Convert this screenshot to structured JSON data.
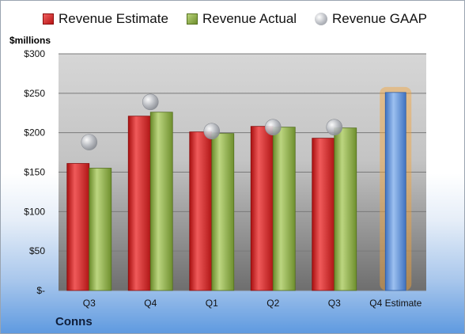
{
  "legend": {
    "estimate": "Revenue Estimate",
    "actual": "Revenue Actual",
    "gaap": "Revenue GAAP"
  },
  "y_unit": "$millions",
  "company": "Conns",
  "colors": {
    "estimate": "#d42a2a",
    "actual": "#8fb04a",
    "gaap": "#b9bcc2",
    "forecast": "#5b8fd6",
    "forecast_glow": "#f5a33a"
  },
  "chart_data": {
    "type": "bar",
    "categories": [
      "Q3",
      "Q4",
      "Q1",
      "Q2",
      "Q3",
      "Q4 Estimate"
    ],
    "series": [
      {
        "name": "Revenue Estimate",
        "values": [
          161,
          221,
          201,
          208,
          193,
          null
        ]
      },
      {
        "name": "Revenue Actual",
        "values": [
          155,
          226,
          199,
          207,
          206,
          null
        ]
      },
      {
        "name": "Revenue GAAP",
        "values": [
          188,
          239,
          202,
          207,
          207,
          null
        ]
      }
    ],
    "forecast": {
      "category": "Q4 Estimate",
      "value": 251
    },
    "y_ticks": [
      {
        "value": 0,
        "label": "$-"
      },
      {
        "value": 50,
        "label": "$50"
      },
      {
        "value": 100,
        "label": "$100"
      },
      {
        "value": 150,
        "label": "$150"
      },
      {
        "value": 200,
        "label": "$200"
      },
      {
        "value": 250,
        "label": "$250"
      },
      {
        "value": 300,
        "label": "$300"
      }
    ],
    "ylim": [
      0,
      300
    ],
    "ylabel": "$millions",
    "grid": true,
    "legend_position": "top"
  }
}
